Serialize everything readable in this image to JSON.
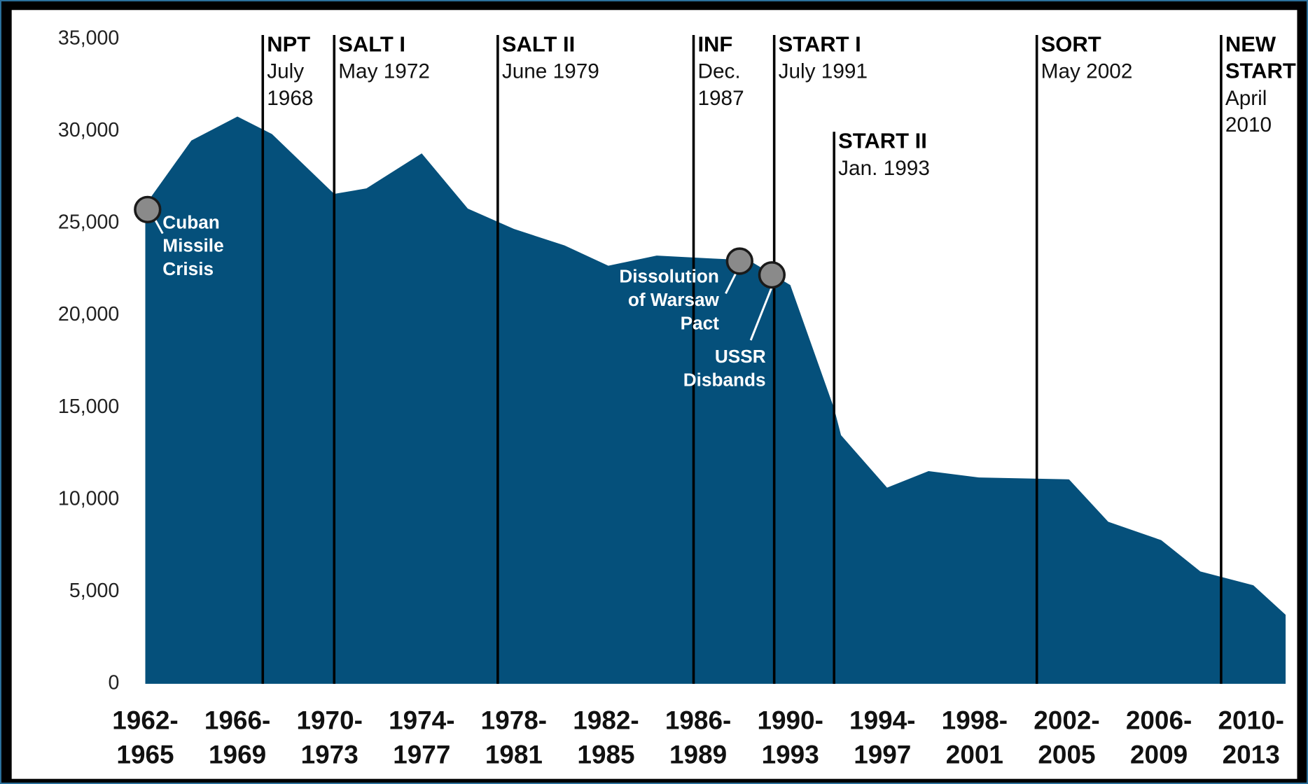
{
  "chart_data": {
    "type": "area",
    "x": [
      1962,
      1964,
      1966,
      1967.5,
      1970.2,
      1971.6,
      1974,
      1976,
      1978,
      1980.2,
      1982.1,
      1984.2,
      1986.5,
      1988.2,
      1990,
      1991.9,
      1992.2,
      1994.2,
      1996,
      1998.2,
      2002.1,
      2003.8,
      2006.1,
      2007.8,
      2010.1,
      2011.5
    ],
    "values": [
      26000,
      29500,
      30800,
      29850,
      26600,
      26900,
      28800,
      25800,
      24700,
      23800,
      22700,
      23250,
      23100,
      23000,
      21650,
      14950,
      13500,
      10650,
      11550,
      11200,
      11100,
      8800,
      7800,
      6100,
      5350,
      3750
    ],
    "color": "#05507b",
    "xlim": [
      1956.2,
      2012
    ],
    "ylim": [
      0,
      35000
    ],
    "yticks": [
      0,
      {
        "value": 5000,
        "label": "5,000"
      },
      {
        "value": 10000,
        "label": "10,000"
      },
      {
        "value": 15000,
        "label": "15,000"
      },
      {
        "value": 20000,
        "label": "20,000"
      },
      {
        "value": 25000,
        "label": "25,000"
      },
      {
        "value": 30000,
        "label": "30,000"
      },
      {
        "value": 35000,
        "label": "35,000"
      }
    ],
    "xticks": [
      {
        "value": 1962,
        "label": "1962-\n1965"
      },
      {
        "value": 1966,
        "label": "1966-\n1969"
      },
      {
        "value": 1970,
        "label": "1970-\n1973"
      },
      {
        "value": 1974,
        "label": "1974-\n1977"
      },
      {
        "value": 1978,
        "label": "1978-\n1981"
      },
      {
        "value": 1982,
        "label": "1982-\n1985"
      },
      {
        "value": 1986,
        "label": "1986-\n1989"
      },
      {
        "value": 1990,
        "label": "1990-\n1993"
      },
      {
        "value": 1994,
        "label": "1994-\n1997"
      },
      {
        "value": 1998,
        "label": "1998-\n2001"
      },
      {
        "value": 2002,
        "label": "2002-\n2005"
      },
      {
        "value": 2006,
        "label": "2006-\n2009"
      },
      {
        "value": 2010,
        "label": "2010-\n2013"
      }
    ],
    "treaties": [
      {
        "x": 1967.1,
        "name": "NPT",
        "date": "July\n1968"
      },
      {
        "x": 1970.2,
        "name": "SALT I",
        "date": "May 1972"
      },
      {
        "x": 1977.3,
        "name": "SALT II",
        "date": "June 1979"
      },
      {
        "x": 1985.8,
        "name": "INF",
        "date": "Dec.\n1987"
      },
      {
        "x": 1989.3,
        "name": "START I",
        "date": "July 1991"
      },
      {
        "x": 1991.9,
        "name": "START II",
        "date": "Jan. 1993"
      },
      {
        "x": 2000.7,
        "name": "SORT",
        "date": "May 2002"
      },
      {
        "x": 2008.7,
        "name": "NEW\nSTART",
        "date": "April\n2010"
      }
    ],
    "events": [
      {
        "x": 1962.1,
        "y": 25750,
        "label": "Cuban\nMissile\nCrisis"
      },
      {
        "x": 1987.8,
        "y": 22950,
        "label": "Dissolution\nof Warsaw\nPact"
      },
      {
        "x": 1989.2,
        "y": 22200,
        "label": "USSR\nDisbands"
      }
    ]
  }
}
